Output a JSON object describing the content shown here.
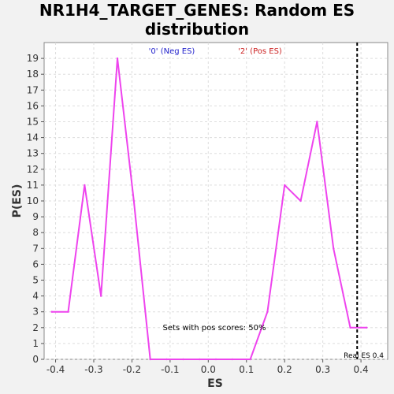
{
  "chart_data": {
    "type": "line",
    "title_lines": [
      "NR1H4_TARGET_GENES: Random ES",
      "distribution"
    ],
    "xlabel": "ES",
    "ylabel": "P(ES)",
    "xlim": [
      -0.43,
      0.47
    ],
    "ylim": [
      0,
      20
    ],
    "x_ticks": [
      -0.4,
      -0.3,
      -0.2,
      -0.1,
      0.0,
      0.1,
      0.2,
      0.3,
      0.4
    ],
    "x_tick_labels": [
      "-0.4",
      "-0.3",
      "-0.2",
      "-0.1",
      "0.0",
      "0.1",
      "0.2",
      "0.3",
      "0.4"
    ],
    "y_ticks": [
      0,
      1,
      2,
      3,
      4,
      5,
      6,
      7,
      8,
      9,
      10,
      11,
      12,
      13,
      14,
      15,
      16,
      17,
      18,
      19
    ],
    "y_tick_labels": [
      "0",
      "1",
      "2",
      "3",
      "4",
      "5",
      "6",
      "7",
      "8",
      "9",
      "10",
      "11",
      "12",
      "13",
      "14",
      "15",
      "16",
      "17",
      "18",
      "19"
    ],
    "grid": true,
    "legend": [
      {
        "label": "'0' (Neg ES)",
        "color": "#2222cc"
      },
      {
        "label": "'2' (Pos ES)",
        "color": "#cc2222"
      }
    ],
    "series": [
      {
        "color": "#ee44ee",
        "x": [
          -0.41,
          -0.367,
          -0.324,
          -0.281,
          -0.238,
          -0.195,
          -0.152,
          -0.109,
          -0.066,
          -0.023,
          0.02,
          0.063,
          0.11,
          0.155,
          0.2,
          0.242,
          0.285,
          0.328,
          0.372,
          0.415
        ],
        "y": [
          3,
          3,
          11,
          4,
          19,
          10,
          0,
          0,
          0,
          0,
          0,
          0,
          0,
          3,
          11,
          10,
          15,
          7,
          2,
          2
        ]
      }
    ],
    "reference_line": {
      "x": 0.39,
      "label": "Real ES 0.4"
    },
    "annotation": "Sets with pos scores: 50%"
  }
}
